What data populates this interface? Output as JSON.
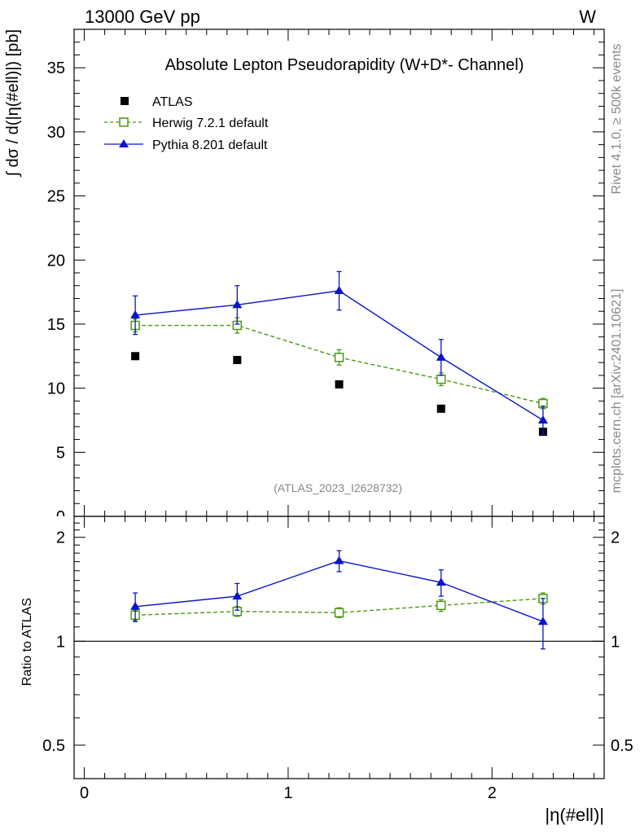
{
  "header": {
    "left": "13000 GeV pp",
    "right": "W"
  },
  "side_labels": {
    "rivet": "Rivet 4.1.0, ≥ 500k events",
    "mcplots": "mcplots.cern.ch [arXiv:2401.10621]"
  },
  "chart_data": {
    "type": "line",
    "title": "Absolute Lepton Pseudorapidity (W+D*- Channel)",
    "analysis_id": "(ATLAS_2023_I2628732)",
    "xlabel": "|η(#ell)|",
    "ylabel_main": "∫ dσ / d(|η(#ell)|) [pb]",
    "ylabel_ratio": "Ratio to ATLAS",
    "xlim": [
      -0.05,
      2.55
    ],
    "ylim_main": [
      0,
      38
    ],
    "ylim_ratio": [
      0.4,
      2.3
    ],
    "x_ticks": [
      0,
      1,
      2
    ],
    "x_tick_labels": [
      "0",
      "1",
      "2"
    ],
    "main_y_ticks": [
      5,
      10,
      15,
      20,
      25,
      30,
      35
    ],
    "main_y_tick_labels": [
      "5",
      "10",
      "15",
      "20",
      "25",
      "30",
      "35"
    ],
    "main_y_zero_label": "0",
    "ratio_y_ticks": [
      0.5,
      1,
      2
    ],
    "ratio_y_tick_labels": [
      "0.5",
      "1",
      "2"
    ],
    "x": [
      0.25,
      0.75,
      1.25,
      1.75,
      2.25
    ],
    "data": {
      "name": "ATLAS",
      "values": [
        12.5,
        12.2,
        10.3,
        8.4,
        6.6
      ]
    },
    "series": [
      {
        "name": "Herwig 7.2.1 default",
        "color": "#4a9a12",
        "values": [
          14.9,
          14.9,
          12.4,
          10.7,
          8.8
        ],
        "errors": [
          0.5,
          0.6,
          0.6,
          0.5,
          0.4
        ],
        "ratio": [
          1.19,
          1.22,
          1.21,
          1.27,
          1.33
        ],
        "ratio_errors": [
          0.04,
          0.04,
          0.04,
          0.05,
          0.05
        ]
      },
      {
        "name": "Pythia 8.201 default",
        "color": "#0a14c8",
        "values": [
          15.7,
          16.5,
          17.6,
          12.4,
          7.5
        ],
        "errors": [
          1.5,
          1.5,
          1.5,
          1.4,
          1.1
        ],
        "ratio": [
          1.26,
          1.35,
          1.71,
          1.48,
          1.14
        ],
        "ratio_errors": [
          0.12,
          0.12,
          0.12,
          0.13,
          0.19
        ]
      }
    ],
    "legend_position": "top-left"
  }
}
